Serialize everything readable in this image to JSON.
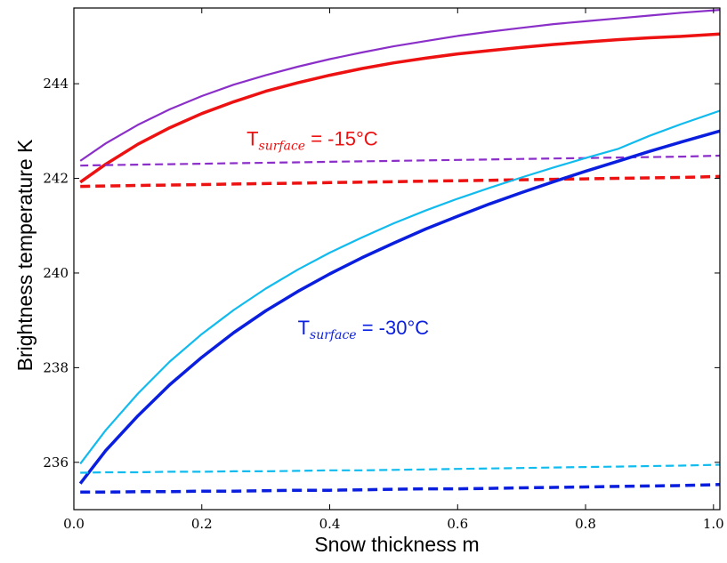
{
  "chart_data": {
    "type": "line",
    "title": "",
    "xlabel": "Snow thickness  m",
    "ylabel": "Brightness temperature  K",
    "xlim": [
      0.0,
      1.01
    ],
    "ylim": [
      235.0,
      245.6
    ],
    "grid": false,
    "legend": "none",
    "xticks": [
      0.0,
      0.2,
      0.4,
      0.6,
      0.8,
      1.0
    ],
    "xtick_labels": [
      "0.0",
      "0.2",
      "0.4",
      "0.6",
      "0.8",
      "1.0"
    ],
    "yticks": [
      236,
      238,
      240,
      242,
      244
    ],
    "ytick_labels": [
      "236",
      "238",
      "240",
      "242",
      "244"
    ],
    "x": [
      0.01,
      0.05,
      0.1,
      0.15,
      0.2,
      0.25,
      0.3,
      0.35,
      0.4,
      0.45,
      0.5,
      0.55,
      0.6,
      0.65,
      0.7,
      0.75,
      0.8,
      0.85,
      0.9,
      0.95,
      1.01
    ],
    "series": [
      {
        "color": "#8b2fc9",
        "width": 2.2,
        "dashed": false,
        "values": [
          242.37,
          242.74,
          243.13,
          243.46,
          243.74,
          243.98,
          244.18,
          244.36,
          244.52,
          244.66,
          244.79,
          244.9,
          245.01,
          245.1,
          245.18,
          245.26,
          245.32,
          245.38,
          245.44,
          245.5,
          245.56
        ]
      },
      {
        "color": "#ee1111",
        "width": 3.5,
        "dashed": false,
        "values": [
          241.92,
          242.3,
          242.72,
          243.07,
          243.37,
          243.62,
          243.84,
          244.02,
          244.18,
          244.32,
          244.44,
          244.54,
          244.63,
          244.7,
          244.77,
          244.83,
          244.88,
          244.93,
          244.97,
          245.0,
          245.05
        ]
      },
      {
        "color": "#8b2fc9",
        "width": 2.2,
        "dashed": true,
        "values": [
          242.27,
          242.28,
          242.29,
          242.3,
          242.31,
          242.32,
          242.33,
          242.34,
          242.35,
          242.36,
          242.37,
          242.38,
          242.39,
          242.4,
          242.41,
          242.42,
          242.43,
          242.44,
          242.45,
          242.46,
          242.48
        ]
      },
      {
        "color": "#ee1111",
        "width": 3.5,
        "dashed": true,
        "values": [
          241.83,
          241.84,
          241.85,
          241.86,
          241.87,
          241.88,
          241.89,
          241.9,
          241.91,
          241.92,
          241.93,
          241.94,
          241.95,
          241.96,
          241.97,
          241.98,
          241.99,
          242.0,
          242.01,
          242.02,
          242.04
        ]
      },
      {
        "color": "#11bbee",
        "width": 2.2,
        "dashed": false,
        "values": [
          235.97,
          236.68,
          237.45,
          238.13,
          238.71,
          239.22,
          239.67,
          240.07,
          240.43,
          240.75,
          241.05,
          241.32,
          241.57,
          241.8,
          242.02,
          242.23,
          242.43,
          242.62,
          242.9,
          243.15,
          243.43
        ]
      },
      {
        "color": "#0a1ee0",
        "width": 3.5,
        "dashed": false,
        "values": [
          235.55,
          236.25,
          236.98,
          237.64,
          238.22,
          238.74,
          239.2,
          239.61,
          239.98,
          240.32,
          240.63,
          240.93,
          241.2,
          241.46,
          241.7,
          241.93,
          242.15,
          242.36,
          242.57,
          242.77,
          243.0
        ]
      },
      {
        "color": "#11bbee",
        "width": 2.2,
        "dashed": true,
        "values": [
          235.78,
          235.79,
          235.79,
          235.8,
          235.8,
          235.81,
          235.81,
          235.82,
          235.83,
          235.83,
          235.84,
          235.85,
          235.86,
          235.87,
          235.88,
          235.89,
          235.9,
          235.91,
          235.92,
          235.93,
          235.95
        ]
      },
      {
        "color": "#0a1ee0",
        "width": 3.5,
        "dashed": true,
        "values": [
          235.37,
          235.37,
          235.38,
          235.38,
          235.39,
          235.39,
          235.4,
          235.41,
          235.41,
          235.42,
          235.43,
          235.44,
          235.44,
          235.45,
          235.46,
          235.47,
          235.48,
          235.49,
          235.5,
          235.51,
          235.53
        ]
      }
    ],
    "annotations": [
      {
        "prefix": "T",
        "subscript": "surface",
        "suffix": " = -15°C",
        "color": "#ee1111",
        "x": 0.27,
        "y": 242.7
      },
      {
        "prefix": "T",
        "subscript": "surface",
        "suffix": " = -30°C",
        "color": "#0a1ee0",
        "x": 0.35,
        "y": 238.7
      }
    ]
  }
}
